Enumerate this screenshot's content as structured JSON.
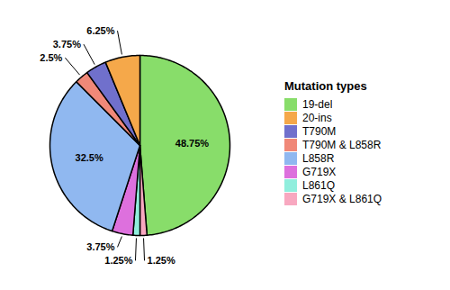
{
  "chart_data": {
    "type": "pie",
    "categories": [
      "19-del",
      "G719X & L861Q",
      "L861Q",
      "G719X",
      "L858R",
      "T790M & L858R",
      "T790M",
      "20-ins"
    ],
    "values": [
      48.75,
      1.25,
      1.25,
      3.75,
      32.5,
      2.5,
      3.75,
      6.25
    ],
    "value_labels": [
      "48.75%",
      "1.25%",
      "1.25%",
      "3.75%",
      "32.5%",
      "2.5%",
      "3.75%",
      "6.25%"
    ],
    "colors": [
      "#88dd6a",
      "#f8a8c0",
      "#90eedd",
      "#dd70dd",
      "#90b8f0",
      "#f08878",
      "#7070cc",
      "#f5a84a"
    ],
    "data_labels": true,
    "legend": "right",
    "legend_title": "Mutation types",
    "legend_labels": [
      "19-del",
      "20-ins",
      "T790M",
      "T790M & L858R",
      "L858R",
      "G719X",
      "L861Q",
      "G719X & L861Q"
    ],
    "legend_colors": [
      "#88dd6a",
      "#f5a84a",
      "#7070cc",
      "#f08878",
      "#90b8f0",
      "#dd70dd",
      "#90eedd",
      "#f8a8c0"
    ]
  }
}
